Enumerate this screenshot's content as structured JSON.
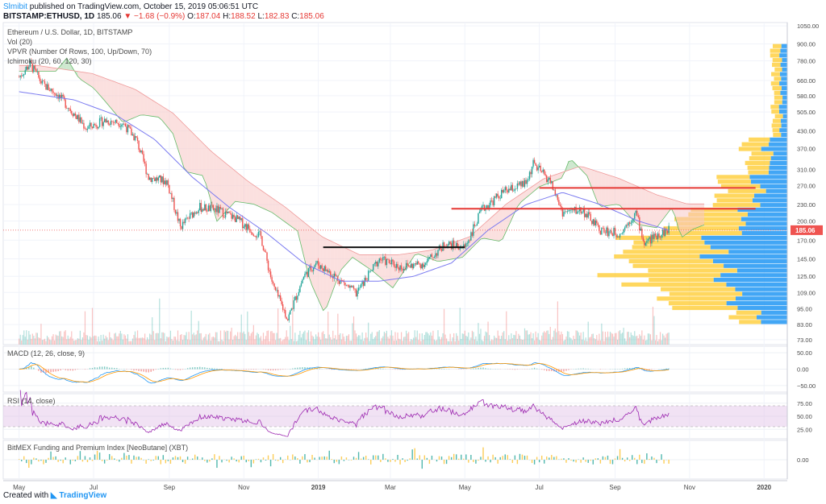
{
  "header": {
    "author": "Slmibit",
    "published_text": "published on TradingView.com, October 15, 2019 05:06:51 UTC",
    "symbol": "BITSTAMP:ETHUSD, 1D",
    "last": "185.06",
    "change_arrow": "▼",
    "change": "−1.68 (−0.9%)",
    "ohlc": {
      "o_label": "O:",
      "o": "187.04",
      "h_label": "H:",
      "h": "188.52",
      "l_label": "L:",
      "l": "182.83",
      "c_label": "C:",
      "c": "185.06"
    }
  },
  "indicators_main": {
    "title": "Ethereum / U.S. Dollar, 1D, BITSTAMP",
    "vol": "Vol (20)",
    "vpvr": "VPVR (Number Of Rows, 100, Up/Down, 70)",
    "ichimoku": "Ichimoku (20, 60, 120, 30)"
  },
  "panels": {
    "macd_label": "MACD (12, 26, close, 9)",
    "rsi_label": "RSI (14, close)",
    "bitmex_label": "BitMEX Funding and Premium Index [NeoButane] (XBT)"
  },
  "footer": {
    "created_with": "Created with",
    "brand": "TradingView"
  },
  "colors": {
    "up": "#26a69a",
    "down": "#ef5350",
    "price_line": "#ef5350",
    "ichimoku_kijun": "#7b7bf0",
    "cloud_bull": "#a5d6a7",
    "cloud_bear": "#f7c6c4",
    "rsi": "#9c27b0",
    "vpvr_up": "#2196f3",
    "vpvr_down": "#ffca28"
  },
  "chart_data": [
    {
      "type": "line",
      "name": "main",
      "scale": "log",
      "y_ticks": [
        "1050.00",
        "900.00",
        "780.00",
        "660.00",
        "580.00",
        "505.00",
        "430.00",
        "370.00",
        "310.00",
        "270.00",
        "230.00",
        "200.00",
        "170.00",
        "145.00",
        "125.00",
        "109.00",
        "95.00",
        "83.00",
        "73.00"
      ],
      "y_tick_values": [
        1050,
        900,
        780,
        660,
        580,
        505,
        430,
        370,
        310,
        270,
        230,
        200,
        170,
        145,
        125,
        109,
        95,
        83,
        73
      ],
      "current_price": 185.06,
      "current_price_label": "185.06",
      "x_labels": [
        "May",
        "Jul",
        "Sep",
        "Nov",
        "2019",
        "Mar",
        "May",
        "Jul",
        "Sep",
        "Nov",
        "2020"
      ],
      "close_path": [
        [
          "2018-05-01",
          680
        ],
        [
          "2018-05-10",
          760
        ],
        [
          "2018-05-20",
          640
        ],
        [
          "2018-06-01",
          590
        ],
        [
          "2018-06-10",
          530
        ],
        [
          "2018-06-25",
          440
        ],
        [
          "2018-07-10",
          470
        ],
        [
          "2018-07-25",
          460
        ],
        [
          "2018-08-05",
          400
        ],
        [
          "2018-08-15",
          290
        ],
        [
          "2018-08-30",
          280
        ],
        [
          "2018-09-10",
          190
        ],
        [
          "2018-09-25",
          225
        ],
        [
          "2018-10-10",
          220
        ],
        [
          "2018-10-25",
          205
        ],
        [
          "2018-11-15",
          175
        ],
        [
          "2018-11-25",
          115
        ],
        [
          "2018-12-07",
          87
        ],
        [
          "2018-12-20",
          125
        ],
        [
          "2018-12-30",
          140
        ],
        [
          "2019-01-15",
          125
        ],
        [
          "2019-02-01",
          108
        ],
        [
          "2019-02-20",
          145
        ],
        [
          "2019-03-10",
          135
        ],
        [
          "2019-03-30",
          140
        ],
        [
          "2019-04-15",
          165
        ],
        [
          "2019-05-01",
          160
        ],
        [
          "2019-05-15",
          220
        ],
        [
          "2019-06-01",
          255
        ],
        [
          "2019-06-20",
          275
        ],
        [
          "2019-06-26",
          325
        ],
        [
          "2019-07-10",
          280
        ],
        [
          "2019-07-20",
          215
        ],
        [
          "2019-08-05",
          220
        ],
        [
          "2019-08-20",
          185
        ],
        [
          "2019-09-05",
          180
        ],
        [
          "2019-09-18",
          215
        ],
        [
          "2019-09-25",
          165
        ],
        [
          "2019-10-05",
          178
        ],
        [
          "2019-10-15",
          185.06
        ]
      ],
      "kijun_path": [
        [
          "2018-05-01",
          600
        ],
        [
          "2018-06-15",
          560
        ],
        [
          "2018-07-20",
          490
        ],
        [
          "2018-08-20",
          400
        ],
        [
          "2018-09-20",
          290
        ],
        [
          "2018-10-20",
          225
        ],
        [
          "2018-11-20",
          180
        ],
        [
          "2018-12-20",
          140
        ],
        [
          "2019-01-20",
          120
        ],
        [
          "2019-02-20",
          120
        ],
        [
          "2019-03-20",
          125
        ],
        [
          "2019-04-20",
          140
        ],
        [
          "2019-05-20",
          185
        ],
        [
          "2019-06-20",
          230
        ],
        [
          "2019-07-20",
          255
        ],
        [
          "2019-08-20",
          230
        ],
        [
          "2019-09-20",
          200
        ],
        [
          "2019-10-15",
          185
        ]
      ],
      "resistance_lines": [
        {
          "from": "2019-07-01",
          "to": "2019-12-25",
          "value": 265,
          "color": "#e53935"
        },
        {
          "from": "2019-04-20",
          "to": "2019-12-25",
          "value": 222,
          "color": "#e53935"
        },
        {
          "from": "2019-01-05",
          "to": "2019-05-01",
          "value": 160,
          "color": "#111111"
        }
      ]
    },
    {
      "type": "line",
      "name": "macd",
      "y_ticks": [
        "50.00",
        "0.00",
        "−50.00"
      ],
      "y_tick_values": [
        50,
        0,
        -50
      ]
    },
    {
      "type": "line",
      "name": "rsi",
      "y_ticks": [
        "75.00",
        "50.00",
        "25.00"
      ],
      "y_tick_values": [
        75,
        50,
        25
      ],
      "band": [
        30,
        70
      ]
    },
    {
      "type": "bar",
      "name": "bitmex",
      "y_ticks": [
        "0.00"
      ],
      "y_tick_values": [
        0
      ]
    }
  ]
}
